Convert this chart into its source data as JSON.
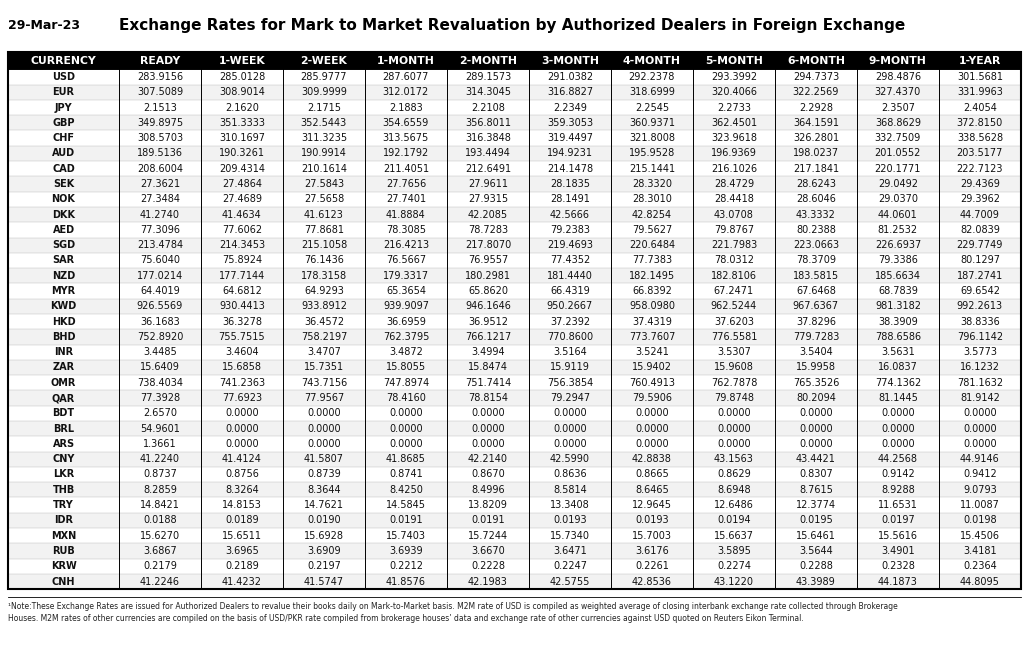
{
  "title": "Exchange Rates for Mark to Market Revaluation by Authorized Dealers in Foreign Exchange",
  "date": "29-Mar-23",
  "columns": [
    "CURRENCY",
    "READY",
    "1-WEEK",
    "2-WEEK",
    "1-MONTH",
    "2-MONTH",
    "3-MONTH",
    "4-MONTH",
    "5-MONTH",
    "6-MONTH",
    "9-MONTH",
    "1-YEAR"
  ],
  "rows": [
    [
      "USD",
      "283.9156",
      "285.0128",
      "285.9777",
      "287.6077",
      "289.1573",
      "291.0382",
      "292.2378",
      "293.3992",
      "294.7373",
      "298.4876",
      "301.5681"
    ],
    [
      "EUR",
      "307.5089",
      "308.9014",
      "309.9999",
      "312.0172",
      "314.3045",
      "316.8827",
      "318.6999",
      "320.4066",
      "322.2569",
      "327.4370",
      "331.9963"
    ],
    [
      "JPY",
      "2.1513",
      "2.1620",
      "2.1715",
      "2.1883",
      "2.2108",
      "2.2349",
      "2.2545",
      "2.2733",
      "2.2928",
      "2.3507",
      "2.4054"
    ],
    [
      "GBP",
      "349.8975",
      "351.3333",
      "352.5443",
      "354.6559",
      "356.8011",
      "359.3053",
      "360.9371",
      "362.4501",
      "364.1591",
      "368.8629",
      "372.8150"
    ],
    [
      "CHF",
      "308.5703",
      "310.1697",
      "311.3235",
      "313.5675",
      "316.3848",
      "319.4497",
      "321.8008",
      "323.9618",
      "326.2801",
      "332.7509",
      "338.5628"
    ],
    [
      "AUD",
      "189.5136",
      "190.3261",
      "190.9914",
      "192.1792",
      "193.4494",
      "194.9231",
      "195.9528",
      "196.9369",
      "198.0237",
      "201.0552",
      "203.5177"
    ],
    [
      "CAD",
      "208.6004",
      "209.4314",
      "210.1614",
      "211.4051",
      "212.6491",
      "214.1478",
      "215.1441",
      "216.1026",
      "217.1841",
      "220.1771",
      "222.7123"
    ],
    [
      "SEK",
      "27.3621",
      "27.4864",
      "27.5843",
      "27.7656",
      "27.9611",
      "28.1835",
      "28.3320",
      "28.4729",
      "28.6243",
      "29.0492",
      "29.4369"
    ],
    [
      "NOK",
      "27.3484",
      "27.4689",
      "27.5658",
      "27.7401",
      "27.9315",
      "28.1491",
      "28.3010",
      "28.4418",
      "28.6046",
      "29.0370",
      "29.3962"
    ],
    [
      "DKK",
      "41.2740",
      "41.4634",
      "41.6123",
      "41.8884",
      "42.2085",
      "42.5666",
      "42.8254",
      "43.0708",
      "43.3332",
      "44.0601",
      "44.7009"
    ],
    [
      "AED",
      "77.3096",
      "77.6062",
      "77.8681",
      "78.3085",
      "78.7283",
      "79.2383",
      "79.5627",
      "79.8767",
      "80.2388",
      "81.2532",
      "82.0839"
    ],
    [
      "SGD",
      "213.4784",
      "214.3453",
      "215.1058",
      "216.4213",
      "217.8070",
      "219.4693",
      "220.6484",
      "221.7983",
      "223.0663",
      "226.6937",
      "229.7749"
    ],
    [
      "SAR",
      "75.6040",
      "75.8924",
      "76.1436",
      "76.5667",
      "76.9557",
      "77.4352",
      "77.7383",
      "78.0312",
      "78.3709",
      "79.3386",
      "80.1297"
    ],
    [
      "NZD",
      "177.0214",
      "177.7144",
      "178.3158",
      "179.3317",
      "180.2981",
      "181.4440",
      "182.1495",
      "182.8106",
      "183.5815",
      "185.6634",
      "187.2741"
    ],
    [
      "MYR",
      "64.4019",
      "64.6812",
      "64.9293",
      "65.3654",
      "65.8620",
      "66.4319",
      "66.8392",
      "67.2471",
      "67.6468",
      "68.7839",
      "69.6542"
    ],
    [
      "KWD",
      "926.5569",
      "930.4413",
      "933.8912",
      "939.9097",
      "946.1646",
      "950.2667",
      "958.0980",
      "962.5244",
      "967.6367",
      "981.3182",
      "992.2613"
    ],
    [
      "HKD",
      "36.1683",
      "36.3278",
      "36.4572",
      "36.6959",
      "36.9512",
      "37.2392",
      "37.4319",
      "37.6203",
      "37.8296",
      "38.3909",
      "38.8336"
    ],
    [
      "BHD",
      "752.8920",
      "755.7515",
      "758.2197",
      "762.3795",
      "766.1217",
      "770.8600",
      "773.7607",
      "776.5581",
      "779.7283",
      "788.6586",
      "796.1142"
    ],
    [
      "INR",
      "3.4485",
      "3.4604",
      "3.4707",
      "3.4872",
      "3.4994",
      "3.5164",
      "3.5241",
      "3.5307",
      "3.5404",
      "3.5631",
      "3.5773"
    ],
    [
      "ZAR",
      "15.6409",
      "15.6858",
      "15.7351",
      "15.8055",
      "15.8474",
      "15.9119",
      "15.9402",
      "15.9608",
      "15.9958",
      "16.0837",
      "16.1232"
    ],
    [
      "OMR",
      "738.4034",
      "741.2363",
      "743.7156",
      "747.8974",
      "751.7414",
      "756.3854",
      "760.4913",
      "762.7878",
      "765.3526",
      "774.1362",
      "781.1632"
    ],
    [
      "QAR",
      "77.3928",
      "77.6923",
      "77.9567",
      "78.4160",
      "78.8154",
      "79.2947",
      "79.5906",
      "79.8748",
      "80.2094",
      "81.1445",
      "81.9142"
    ],
    [
      "BDT",
      "2.6570",
      "0.0000",
      "0.0000",
      "0.0000",
      "0.0000",
      "0.0000",
      "0.0000",
      "0.0000",
      "0.0000",
      "0.0000",
      "0.0000"
    ],
    [
      "BRL",
      "54.9601",
      "0.0000",
      "0.0000",
      "0.0000",
      "0.0000",
      "0.0000",
      "0.0000",
      "0.0000",
      "0.0000",
      "0.0000",
      "0.0000"
    ],
    [
      "ARS",
      "1.3661",
      "0.0000",
      "0.0000",
      "0.0000",
      "0.0000",
      "0.0000",
      "0.0000",
      "0.0000",
      "0.0000",
      "0.0000",
      "0.0000"
    ],
    [
      "CNY",
      "41.2240",
      "41.4124",
      "41.5807",
      "41.8685",
      "42.2140",
      "42.5990",
      "42.8838",
      "43.1563",
      "43.4421",
      "44.2568",
      "44.9146"
    ],
    [
      "LKR",
      "0.8737",
      "0.8756",
      "0.8739",
      "0.8741",
      "0.8670",
      "0.8636",
      "0.8665",
      "0.8629",
      "0.8307",
      "0.9142",
      "0.9412"
    ],
    [
      "THB",
      "8.2859",
      "8.3264",
      "8.3644",
      "8.4250",
      "8.4996",
      "8.5814",
      "8.6465",
      "8.6948",
      "8.7615",
      "8.9288",
      "9.0793"
    ],
    [
      "TRY",
      "14.8421",
      "14.8153",
      "14.7621",
      "14.5845",
      "13.8209",
      "13.3408",
      "12.9645",
      "12.6486",
      "12.3774",
      "11.6531",
      "11.0087"
    ],
    [
      "IDR",
      "0.0188",
      "0.0189",
      "0.0190",
      "0.0191",
      "0.0191",
      "0.0193",
      "0.0193",
      "0.0194",
      "0.0195",
      "0.0197",
      "0.0198"
    ],
    [
      "MXN",
      "15.6270",
      "15.6511",
      "15.6928",
      "15.7403",
      "15.7244",
      "15.7340",
      "15.7003",
      "15.6637",
      "15.6461",
      "15.5616",
      "15.4506"
    ],
    [
      "RUB",
      "3.6867",
      "3.6965",
      "3.6909",
      "3.6939",
      "3.6670",
      "3.6471",
      "3.6176",
      "3.5895",
      "3.5644",
      "3.4901",
      "3.4181"
    ],
    [
      "KRW",
      "0.2179",
      "0.2189",
      "0.2197",
      "0.2212",
      "0.2228",
      "0.2247",
      "0.2261",
      "0.2274",
      "0.2288",
      "0.2328",
      "0.2364"
    ],
    [
      "CNH",
      "41.2246",
      "41.4232",
      "41.5747",
      "41.8576",
      "42.1983",
      "42.5755",
      "42.8536",
      "43.1220",
      "43.3989",
      "44.1873",
      "44.8095"
    ]
  ],
  "note_line1": "¹Note:These Exchange Rates are issued for Authorized Dealers to revalue their books daily on Mark-to-Market basis. M2M rate of USD is compiled as weighted average of closing interbank exchange rate collected through Brokerage",
  "note_line2": "Houses. M2M rates of other currencies are compiled on the basis of USD/PKR rate compiled from brokerage houses’ data and exchange rate of other currencies against USD quoted on Reuters Eikon Terminal.",
  "header_bg": "#000000",
  "header_fg": "#ffffff",
  "title_fontsize": 11,
  "header_fontsize": 7.8,
  "data_fontsize": 7.0,
  "col_widths_raw": [
    1.35,
    1.0,
    1.0,
    1.0,
    1.0,
    1.0,
    1.0,
    1.0,
    1.0,
    1.0,
    1.0,
    1.0
  ]
}
